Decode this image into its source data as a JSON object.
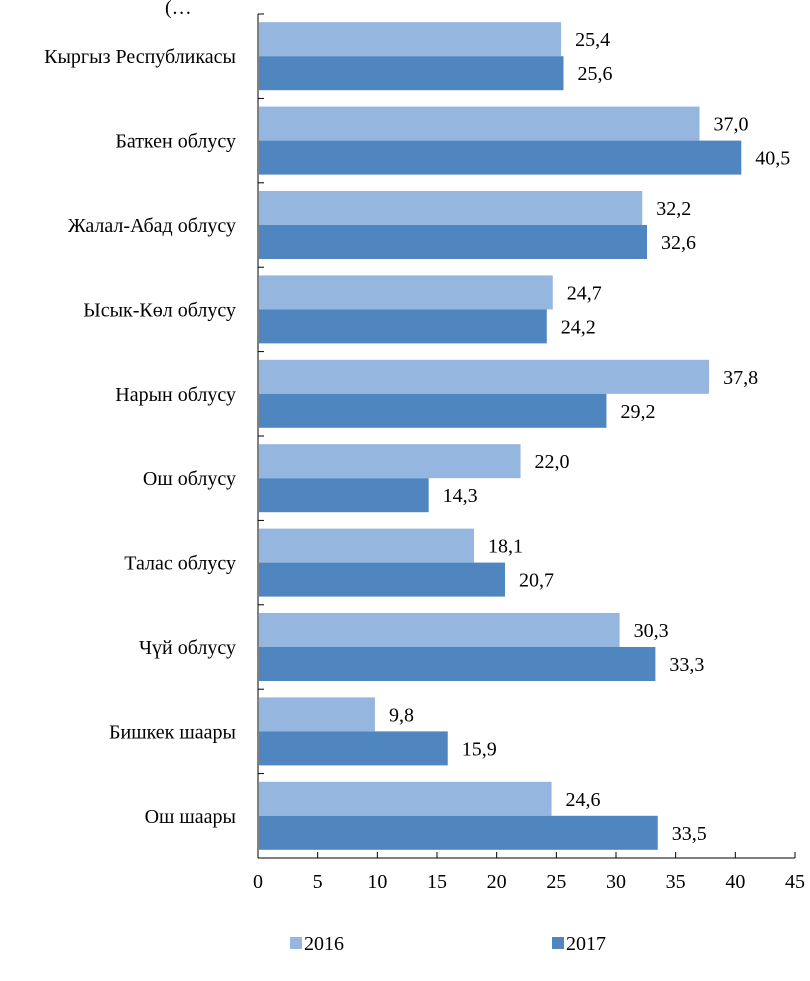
{
  "chart_data": {
    "type": "bar",
    "orientation": "horizontal",
    "title": "(…",
    "categories": [
      "Кыргыз Республикасы",
      "Баткен облусу",
      "Жалал-Абад облусу",
      "Ысык-Көл облусу",
      "Нарын облусу",
      "Ош облусу",
      "Талас облусу",
      "Чүй облусу",
      "Бишкек шаары",
      "Ош шаары"
    ],
    "series": [
      {
        "name": "2016",
        "color": "#95b6df",
        "values": [
          25.4,
          37.0,
          32.2,
          24.7,
          37.8,
          22.0,
          18.1,
          30.3,
          9.8,
          24.6
        ],
        "labels": [
          "25,4",
          "37,0",
          "32,2",
          "24,7",
          "37,8",
          "22,0",
          "18,1",
          "30,3",
          "9,8",
          "24,6"
        ]
      },
      {
        "name": "2017",
        "color": "#4f86bf",
        "values": [
          25.6,
          40.5,
          32.6,
          24.2,
          29.2,
          14.3,
          20.7,
          33.3,
          15.9,
          33.5
        ],
        "labels": [
          "25,6",
          "40,5",
          "32,6",
          "24,2",
          "29,2",
          "14,3",
          "20,7",
          "33,3",
          "15,9",
          "33,5"
        ]
      }
    ],
    "xlim": [
      0,
      45
    ],
    "xticks": [
      0,
      5,
      10,
      15,
      20,
      25,
      30,
      35,
      40,
      45
    ],
    "xlabel": "",
    "ylabel": "",
    "grid": false,
    "legend": "bottom"
  }
}
